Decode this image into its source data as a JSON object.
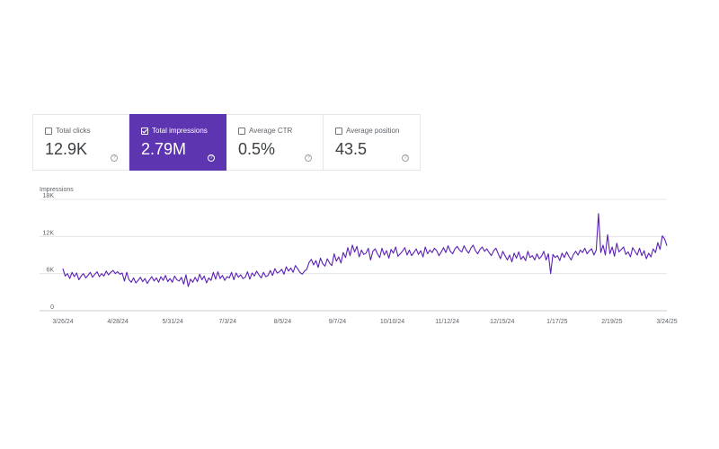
{
  "metrics": [
    {
      "label": "Total clicks",
      "value": "12.9K",
      "selected": false,
      "icon": "help-icon"
    },
    {
      "label": "Total impressions",
      "value": "2.79M",
      "selected": true,
      "icon": "help-icon"
    },
    {
      "label": "Average CTR",
      "value": "0.5%",
      "selected": false,
      "icon": "help-icon"
    },
    {
      "label": "Average position",
      "value": "43.5",
      "selected": false,
      "icon": "help-icon"
    }
  ],
  "colors": {
    "accent": "#5e35b1",
    "line": "#5b21b6",
    "grid": "#e0e0e0"
  },
  "chart_data": {
    "type": "line",
    "ylabel": "Impressions",
    "ylim": [
      0,
      18000
    ],
    "yticks": [
      0,
      6000,
      12000,
      18000
    ],
    "ytick_labels": [
      "0",
      "6K",
      "12K",
      "18K"
    ],
    "grid": true,
    "xtick_labels": [
      "3/26/24",
      "4/28/24",
      "5/31/24",
      "7/3/24",
      "8/5/24",
      "9/7/24",
      "10/10/24",
      "11/12/24",
      "12/15/24",
      "1/17/25",
      "2/19/25",
      "3/24/25"
    ],
    "x_start": "3/26/24",
    "x_end": "3/26/25",
    "series": [
      {
        "values": [
          6800,
          5600,
          6000,
          5200,
          6200,
          5500,
          6100,
          5000,
          5600,
          6000,
          5300,
          5700,
          6200,
          5400,
          5900,
          6300,
          5500,
          6000,
          5600,
          6400,
          5800,
          6200,
          6500,
          6000,
          6300,
          5900,
          6100,
          4800,
          6200,
          5000,
          4600,
          5300,
          4500,
          4900,
          5400,
          4700,
          5200,
          4400,
          5000,
          5500,
          4800,
          5300,
          4600,
          5500,
          4900,
          5700,
          4700,
          5200,
          4600,
          5600,
          5000,
          4800,
          5400,
          4300,
          5800,
          3900,
          5100,
          4600,
          5400,
          4700,
          5900,
          5000,
          5600,
          4500,
          5300,
          4900,
          6200,
          5100,
          6300,
          5200,
          5700,
          4900,
          5500,
          5300,
          6200,
          5000,
          6100,
          5400,
          5800,
          5200,
          5400,
          6300,
          5100,
          6100,
          5600,
          6400,
          5800,
          5300,
          6200,
          5500,
          5700,
          6500,
          5700,
          6800,
          6100,
          6300,
          6700,
          5900,
          7100,
          6400,
          6900,
          6200,
          7300,
          6800,
          6200,
          5900,
          6400,
          6700,
          7800,
          8300,
          7400,
          8100,
          7000,
          8500,
          7600,
          7200,
          8400,
          7700,
          7300,
          9200,
          8000,
          8700,
          7700,
          9400,
          8600,
          10200,
          8900,
          10600,
          9500,
          10400,
          8700,
          9800,
          9100,
          9300,
          10100,
          8200,
          9600,
          10000,
          9200,
          8600,
          10100,
          9000,
          9700,
          8500,
          9900,
          9300,
          10300,
          8800,
          9200,
          9600,
          10200,
          9000,
          9800,
          8900,
          9400,
          10000,
          9100,
          9700,
          8700,
          10300,
          9200,
          9800,
          9400,
          10100,
          9700,
          8900,
          9500,
          10200,
          9400,
          10500,
          9600,
          9200,
          10000,
          10400,
          9800,
          9500,
          10500,
          9800,
          9300,
          10100,
          10600,
          9700,
          9200,
          9900,
          10300,
          9600,
          10000,
          9400,
          8900,
          9700,
          10100,
          9200,
          8400,
          9600,
          8900,
          8200,
          9000,
          7900,
          9300,
          8500,
          9500,
          8300,
          8800,
          8100,
          9600,
          8600,
          8900,
          8200,
          9200,
          8400,
          8800,
          9600,
          8200,
          9200,
          6000,
          9100,
          8600,
          8900,
          8100,
          9300,
          8600,
          9500,
          8800,
          8200,
          9100,
          9600,
          9000,
          9800,
          9400,
          10100,
          9200,
          9700,
          10000,
          9000,
          9800,
          15700,
          9400,
          10600,
          9000,
          12300,
          9200,
          10300,
          8800,
          10900,
          9500,
          9900,
          10300,
          9100,
          9500,
          8700,
          10200,
          9600,
          9000,
          10100,
          8900,
          9700,
          8400,
          9300,
          8700,
          10000,
          9400,
          11000,
          9900,
          12100,
          11600,
          10500
        ]
      }
    ]
  }
}
